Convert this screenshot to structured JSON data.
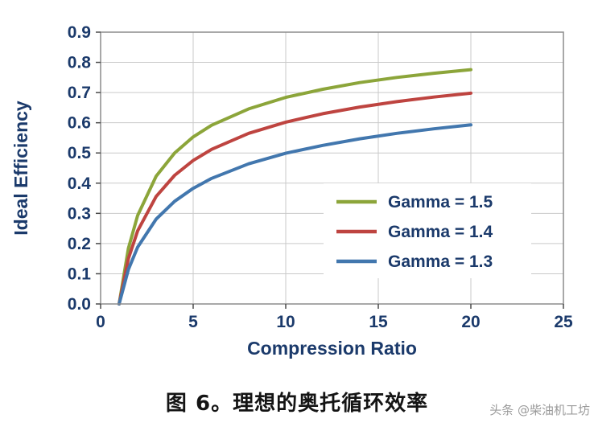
{
  "caption": "图 6。理想的奥托循环效率",
  "watermark": "头条 @柴油机工坊",
  "colors": {
    "text": "#1b3a6b",
    "grid": "#c9c9c9",
    "border": "#8c8c8c",
    "background": "#ffffff"
  },
  "chart_data": {
    "type": "line",
    "title": "",
    "xlabel": "Compression Ratio",
    "ylabel": "Ideal Efficiency",
    "xlim": [
      0,
      25
    ],
    "ylim": [
      0,
      0.9
    ],
    "x_ticks": [
      0,
      5,
      10,
      15,
      20,
      25
    ],
    "y_ticks": [
      0.0,
      0.1,
      0.2,
      0.3,
      0.4,
      0.5,
      0.6,
      0.7,
      0.8,
      0.9
    ],
    "grid": true,
    "legend_position": "inside lower right",
    "x": [
      1,
      1.5,
      2,
      3,
      4,
      5,
      6,
      8,
      10,
      12,
      14,
      16,
      18,
      20
    ],
    "series": [
      {
        "name": "Gamma = 1.5",
        "color": "#8ca53a",
        "values": [
          0,
          0.184,
          0.293,
          0.423,
          0.5,
          0.553,
          0.592,
          0.646,
          0.684,
          0.711,
          0.733,
          0.75,
          0.764,
          0.776
        ]
      },
      {
        "name": "Gamma = 1.4",
        "color": "#be4440",
        "values": [
          0,
          0.15,
          0.242,
          0.356,
          0.426,
          0.475,
          0.512,
          0.565,
          0.602,
          0.63,
          0.652,
          0.67,
          0.685,
          0.698
        ]
      },
      {
        "name": "Gamma = 1.3",
        "color": "#4277ae",
        "values": [
          0,
          0.114,
          0.188,
          0.281,
          0.34,
          0.383,
          0.416,
          0.464,
          0.499,
          0.525,
          0.547,
          0.565,
          0.58,
          0.593
        ]
      }
    ]
  }
}
